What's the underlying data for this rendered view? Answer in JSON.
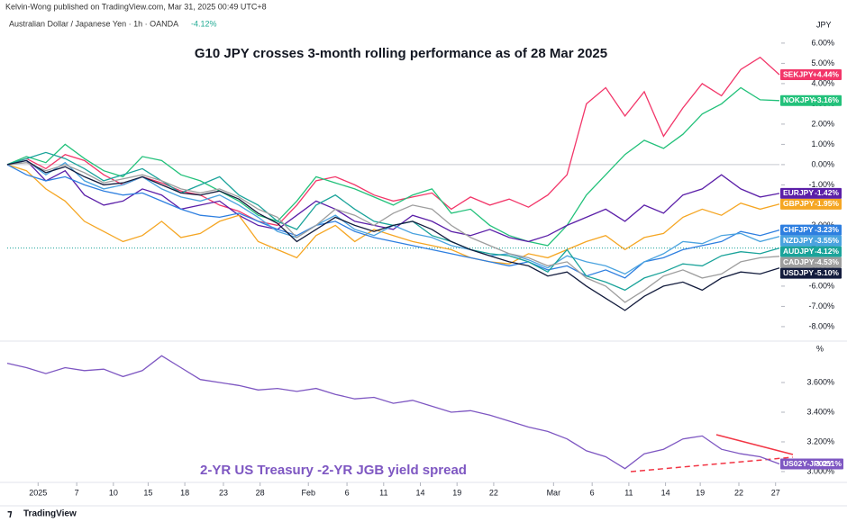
{
  "header": {
    "publisher": "Kelvin-Wong published on TradingView.com, Mar 31, 2025 00:49 UTC+8",
    "symbol": "Australian Dollar / Japanese Yen · 1h · OANDA",
    "change": "-4.12%"
  },
  "footer": "TradingView",
  "chart_data": [
    {
      "type": "line",
      "title": "G10 JPY crosses 3-month rolling performance as of 28 Mar 2025",
      "axis_label": "JPY",
      "xlim": [
        0,
        40
      ],
      "ylim": [
        -8.67,
        7.24
      ],
      "yticks": [
        {
          "value": 6,
          "label": "6.00%"
        },
        {
          "value": 5,
          "label": "5.00%"
        },
        {
          "value": 4,
          "label": "4.00%"
        },
        {
          "value": 3,
          "label": "3.00%"
        },
        {
          "value": 2,
          "label": "2.00%"
        },
        {
          "value": 1,
          "label": "1.00%"
        },
        {
          "value": 0,
          "label": "0.00%"
        },
        {
          "value": -1,
          "label": "-1.00%"
        },
        {
          "value": -2,
          "label": "-2.00%"
        },
        {
          "value": -3,
          "label": "-3.00%"
        },
        {
          "value": -4,
          "label": "-4.00%"
        },
        {
          "value": -5,
          "label": "-5.00%"
        },
        {
          "value": -6,
          "label": "-6.00%"
        },
        {
          "value": -7,
          "label": "-7.00%"
        },
        {
          "value": -8,
          "label": "-8.00%"
        }
      ],
      "grid": false,
      "series": [
        {
          "name": "SEKJPY",
          "color": "#f23669",
          "end_label": "+4.44%",
          "values": [
            0,
            0.3,
            -0.2,
            0.5,
            0.2,
            -0.5,
            -1.0,
            -0.6,
            -0.9,
            -1.3,
            -1.5,
            -2.0,
            -2.3,
            -2.8,
            -3.0,
            -2.0,
            -0.8,
            -0.6,
            -1.0,
            -1.5,
            -1.8,
            -1.6,
            -1.4,
            -2.2,
            -1.6,
            -2.0,
            -1.7,
            -2.1,
            -1.5,
            -0.5,
            3.0,
            3.8,
            2.4,
            3.6,
            1.4,
            2.8,
            4.0,
            3.4,
            4.7,
            5.3,
            4.44
          ]
        },
        {
          "name": "NOKJPY",
          "color": "#22c17a",
          "end_label": "+3.16%",
          "values": [
            0,
            0.4,
            0.1,
            1.0,
            0.3,
            -0.3,
            -0.6,
            0.4,
            0.2,
            -0.5,
            -0.8,
            -1.3,
            -1.8,
            -2.5,
            -2.8,
            -1.8,
            -0.6,
            -0.9,
            -1.2,
            -1.6,
            -2.0,
            -1.5,
            -1.2,
            -2.4,
            -2.2,
            -3.0,
            -3.5,
            -3.8,
            -4.0,
            -3.0,
            -1.5,
            -0.5,
            0.5,
            1.2,
            0.8,
            1.5,
            2.5,
            3.0,
            3.8,
            3.2,
            3.16
          ]
        },
        {
          "name": "EURJPY",
          "color": "#5b1fa8",
          "end_label": "-1.42%",
          "values": [
            0,
            0.2,
            -0.8,
            -0.3,
            -1.5,
            -2.0,
            -1.8,
            -1.2,
            -1.5,
            -2.2,
            -2.0,
            -1.8,
            -2.5,
            -3.0,
            -3.2,
            -2.5,
            -1.8,
            -2.2,
            -2.8,
            -3.0,
            -3.2,
            -2.5,
            -2.8,
            -3.3,
            -3.5,
            -3.2,
            -3.6,
            -3.8,
            -3.5,
            -3.0,
            -2.6,
            -2.2,
            -2.8,
            -2.0,
            -2.4,
            -1.5,
            -1.2,
            -0.5,
            -1.2,
            -1.6,
            -1.42
          ]
        },
        {
          "name": "GBPJPY",
          "color": "#f5a623",
          "end_label": "-1.95%",
          "values": [
            0,
            -0.3,
            -1.2,
            -1.8,
            -2.8,
            -3.3,
            -3.8,
            -3.5,
            -2.8,
            -3.6,
            -3.4,
            -2.8,
            -2.5,
            -3.8,
            -4.2,
            -4.6,
            -3.5,
            -3.0,
            -3.8,
            -3.2,
            -3.5,
            -3.8,
            -4.0,
            -4.2,
            -4.6,
            -4.8,
            -4.9,
            -4.4,
            -4.6,
            -4.2,
            -3.8,
            -3.5,
            -4.2,
            -3.6,
            -3.4,
            -2.6,
            -2.2,
            -2.5,
            -1.9,
            -2.2,
            -1.95
          ]
        },
        {
          "name": "CHFJPY",
          "color": "#2e7fe0",
          "end_label": "-3.23%",
          "values": [
            0,
            -0.5,
            -0.8,
            -0.6,
            -1.0,
            -1.3,
            -1.5,
            -1.4,
            -1.8,
            -2.2,
            -2.5,
            -2.6,
            -2.4,
            -2.8,
            -3.2,
            -3.5,
            -3.0,
            -2.8,
            -3.3,
            -3.6,
            -3.8,
            -4.0,
            -4.2,
            -4.4,
            -4.6,
            -4.8,
            -5.0,
            -4.8,
            -5.2,
            -5.0,
            -5.5,
            -5.2,
            -5.6,
            -4.8,
            -4.6,
            -4.2,
            -4.0,
            -3.8,
            -3.3,
            -3.5,
            -3.23
          ]
        },
        {
          "name": "NZDJPY",
          "color": "#4aa3df",
          "end_label": "-3.55%",
          "values": [
            0,
            0.2,
            -0.5,
            0.1,
            -0.8,
            -1.2,
            -1.0,
            -0.6,
            -1.2,
            -1.6,
            -1.8,
            -1.5,
            -2.0,
            -2.6,
            -3.3,
            -3.6,
            -3.0,
            -2.5,
            -3.2,
            -3.5,
            -3.0,
            -3.4,
            -3.6,
            -4.0,
            -4.2,
            -4.5,
            -4.4,
            -4.7,
            -5.1,
            -4.5,
            -4.8,
            -5.0,
            -5.4,
            -4.8,
            -4.4,
            -3.8,
            -3.9,
            -3.5,
            -3.4,
            -3.8,
            -3.55
          ]
        },
        {
          "name": "AUDJPY",
          "color": "#1aa39a",
          "end_label": "-4.12%",
          "values": [
            0,
            0.3,
            0.6,
            0.3,
            -0.2,
            -0.8,
            -0.5,
            -0.2,
            -0.8,
            -1.4,
            -1.0,
            -0.6,
            -1.5,
            -2.0,
            -2.8,
            -3.2,
            -2.0,
            -1.5,
            -2.2,
            -2.8,
            -3.0,
            -2.8,
            -3.5,
            -3.8,
            -4.2,
            -4.4,
            -4.5,
            -4.8,
            -5.3,
            -4.2,
            -5.5,
            -5.8,
            -6.2,
            -5.6,
            -5.3,
            -4.9,
            -5.0,
            -4.5,
            -4.3,
            -4.4,
            -4.12
          ]
        },
        {
          "name": "CADJPY",
          "color": "#9e9e9e",
          "end_label": "-4.53%",
          "values": [
            0,
            0.1,
            -0.3,
            0.0,
            -0.4,
            -0.9,
            -0.7,
            -0.5,
            -0.8,
            -1.2,
            -1.4,
            -1.2,
            -1.6,
            -2.2,
            -2.6,
            -3.6,
            -3.0,
            -2.2,
            -2.5,
            -3.0,
            -2.4,
            -2.0,
            -2.2,
            -3.0,
            -3.6,
            -4.0,
            -4.4,
            -4.6,
            -5.0,
            -4.8,
            -5.6,
            -6.0,
            -6.8,
            -6.2,
            -5.5,
            -5.2,
            -5.6,
            -5.4,
            -4.8,
            -4.6,
            -4.53
          ]
        },
        {
          "name": "USDJPY",
          "color": "#131c3d",
          "end_label": "-5.10%",
          "values": [
            0,
            0.2,
            -0.4,
            -0.1,
            -0.6,
            -1.0,
            -0.9,
            -0.6,
            -1.0,
            -1.4,
            -1.5,
            -1.3,
            -1.7,
            -2.4,
            -2.9,
            -3.8,
            -3.2,
            -2.6,
            -3.0,
            -3.3,
            -3.0,
            -2.8,
            -3.2,
            -3.8,
            -4.2,
            -4.5,
            -4.8,
            -5.0,
            -5.5,
            -5.3,
            -6.0,
            -6.6,
            -7.2,
            -6.5,
            -6.0,
            -5.8,
            -6.2,
            -5.6,
            -5.3,
            -5.4,
            -5.1
          ]
        }
      ]
    },
    {
      "type": "line",
      "annotation": "2-YR US Treasury -2-YR JGB yield spread",
      "axis_label": "%",
      "xlim": [
        0,
        40
      ],
      "xticks": [
        {
          "value": 1.6,
          "label": "2025"
        },
        {
          "value": 3.6,
          "label": "7"
        },
        {
          "value": 5.5,
          "label": "10"
        },
        {
          "value": 7.3,
          "label": "15"
        },
        {
          "value": 9.2,
          "label": "18"
        },
        {
          "value": 11.2,
          "label": "23"
        },
        {
          "value": 13.1,
          "label": "28"
        },
        {
          "value": 15.6,
          "label": "Feb"
        },
        {
          "value": 17.6,
          "label": "6"
        },
        {
          "value": 19.5,
          "label": "11"
        },
        {
          "value": 21.4,
          "label": "14"
        },
        {
          "value": 23.3,
          "label": "19"
        },
        {
          "value": 25.2,
          "label": "22"
        },
        {
          "value": 28.3,
          "label": "Mar"
        },
        {
          "value": 30.3,
          "label": "6"
        },
        {
          "value": 32.2,
          "label": "11"
        },
        {
          "value": 34.1,
          "label": "14"
        },
        {
          "value": 35.9,
          "label": "19"
        },
        {
          "value": 37.9,
          "label": "22"
        },
        {
          "value": 39.8,
          "label": "27"
        }
      ],
      "ylim": [
        2.933,
        3.873
      ],
      "yticks": [
        {
          "value": 3.6,
          "label": "3.600%"
        },
        {
          "value": 3.4,
          "label": "3.400%"
        },
        {
          "value": 3.2,
          "label": "3.200%"
        },
        {
          "value": 3.0,
          "label": "3.000%"
        }
      ],
      "grid": false,
      "series": [
        {
          "name": "US02Y-JP02Y",
          "color": "#7e57c2",
          "end_label": "3.051%",
          "values": [
            3.73,
            3.7,
            3.66,
            3.7,
            3.68,
            3.69,
            3.64,
            3.68,
            3.78,
            3.7,
            3.62,
            3.6,
            3.58,
            3.55,
            3.56,
            3.54,
            3.56,
            3.52,
            3.49,
            3.5,
            3.46,
            3.48,
            3.44,
            3.4,
            3.41,
            3.38,
            3.34,
            3.3,
            3.27,
            3.22,
            3.14,
            3.1,
            3.02,
            3.12,
            3.15,
            3.22,
            3.24,
            3.15,
            3.12,
            3.1,
            3.051
          ]
        }
      ]
    }
  ]
}
